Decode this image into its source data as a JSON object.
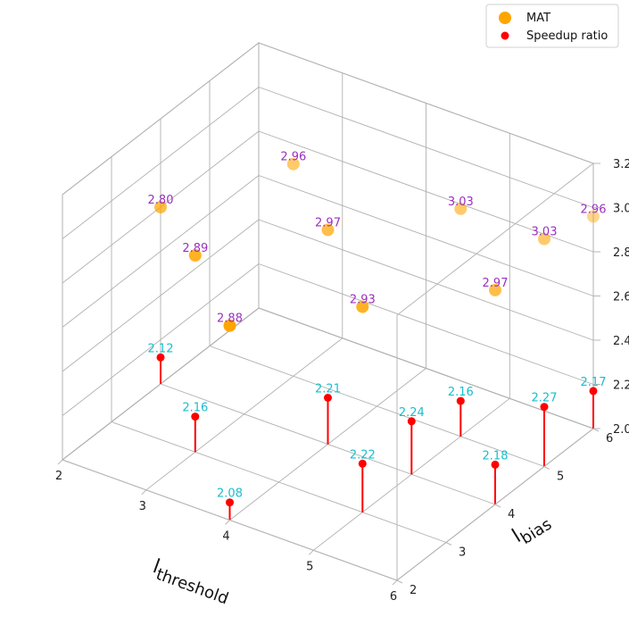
{
  "chart_data": {
    "type": "scatter3d",
    "title": "",
    "xlabel_main": "l",
    "xlabel_sub": "threshold",
    "ylabel_main": "l",
    "ylabel_sub": "bias",
    "xlim": [
      2,
      6
    ],
    "ylim": [
      2,
      6
    ],
    "zlim": [
      2.0,
      3.2
    ],
    "x_ticks": [
      "2",
      "3",
      "4",
      "5",
      "6"
    ],
    "y_ticks": [
      "2",
      "3",
      "4",
      "5",
      "6"
    ],
    "z_ticks": [
      "2.0",
      "2.2",
      "2.4",
      "2.6",
      "2.8",
      "3.0",
      "3.2"
    ],
    "grid": true,
    "legend_position": "top-right",
    "series": [
      {
        "name": "MAT",
        "color": "#ffa500",
        "label_color": "#9b30c0",
        "points": [
          {
            "x": 4,
            "y": 2,
            "z": 2.88,
            "label": "2.88"
          },
          {
            "x": 3,
            "y": 3,
            "z": 2.89,
            "label": "2.89"
          },
          {
            "x": 5,
            "y": 3,
            "z": 2.93,
            "label": "2.93"
          },
          {
            "x": 2,
            "y": 4,
            "z": 2.8,
            "label": "2.80"
          },
          {
            "x": 4,
            "y": 4,
            "z": 2.97,
            "label": "2.97"
          },
          {
            "x": 6,
            "y": 4,
            "z": 2.97,
            "label": "2.97"
          },
          {
            "x": 3,
            "y": 5,
            "z": 2.96,
            "label": "2.96"
          },
          {
            "x": 5,
            "y": 5,
            "z": 3.03,
            "label": "3.03"
          },
          {
            "x": 6,
            "y": 5,
            "z": 3.03,
            "label": "3.03"
          },
          {
            "x": 6,
            "y": 6,
            "z": 2.96,
            "label": "2.96"
          }
        ]
      },
      {
        "name": "Speedup ratio",
        "color": "#ff0000",
        "label_color": "#17becf",
        "points": [
          {
            "x": 4,
            "y": 2,
            "z": 2.08,
            "label": "2.08"
          },
          {
            "x": 3,
            "y": 3,
            "z": 2.16,
            "label": "2.16"
          },
          {
            "x": 5,
            "y": 3,
            "z": 2.22,
            "label": "2.22"
          },
          {
            "x": 2,
            "y": 4,
            "z": 2.12,
            "label": "2.12"
          },
          {
            "x": 4,
            "y": 4,
            "z": 2.21,
            "label": "2.21"
          },
          {
            "x": 5,
            "y": 4,
            "z": 2.24,
            "label": "2.24"
          },
          {
            "x": 6,
            "y": 4,
            "z": 2.18,
            "label": "2.18"
          },
          {
            "x": 5,
            "y": 5,
            "z": 2.16,
            "label": "2.16"
          },
          {
            "x": 6,
            "y": 5,
            "z": 2.27,
            "label": "2.27"
          },
          {
            "x": 6,
            "y": 6,
            "z": 2.17,
            "label": "2.17"
          }
        ]
      }
    ]
  }
}
